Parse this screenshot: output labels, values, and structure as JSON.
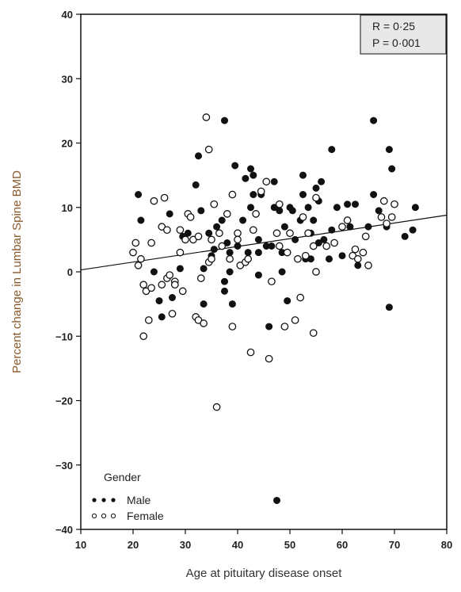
{
  "chart_data": {
    "type": "scatter",
    "xlabel": "Age at pituitary disease onset",
    "ylabel": "Percent change in Lumbar Spine BMD",
    "xlim": [
      10,
      80
    ],
    "ylim": [
      -40,
      40
    ],
    "xticks": [
      10,
      20,
      30,
      40,
      50,
      60,
      70,
      80
    ],
    "yticks": [
      40,
      30,
      20,
      10,
      0,
      -10,
      -20,
      -30,
      -40
    ],
    "xtick_labels": [
      "10",
      "20",
      "30",
      "40",
      "50",
      "60",
      "70",
      "80"
    ],
    "ytick_labels": [
      "40",
      "30",
      "20",
      "10",
      "0",
      "−10",
      "−20",
      "−30",
      "−40"
    ],
    "grid": false,
    "stats": {
      "r": "R = 0·25",
      "p": "P = 0·001"
    },
    "fit_line": {
      "x": [
        10,
        80
      ],
      "y": [
        0.3,
        8.8
      ]
    },
    "legend": {
      "title": "Gender",
      "placement": "bottom-left",
      "entries": [
        "Male",
        "Female"
      ]
    },
    "series": [
      {
        "name": "Male",
        "marker": "filled-circle",
        "color": "#111111",
        "points": [
          [
            21,
            12
          ],
          [
            21.5,
            8
          ],
          [
            24,
            0
          ],
          [
            25,
            -4.5
          ],
          [
            25.5,
            -7
          ],
          [
            27,
            9
          ],
          [
            27.5,
            -4
          ],
          [
            29,
            0.5
          ],
          [
            29.5,
            5.5
          ],
          [
            30.5,
            6
          ],
          [
            31.5,
            5
          ],
          [
            32,
            13.5
          ],
          [
            32.5,
            18
          ],
          [
            33,
            9.5
          ],
          [
            33.5,
            0.5
          ],
          [
            33.5,
            -5
          ],
          [
            34.5,
            6
          ],
          [
            35,
            2.5
          ],
          [
            35.5,
            3.5
          ],
          [
            36,
            7
          ],
          [
            37,
            8
          ],
          [
            37.5,
            23.5
          ],
          [
            37.5,
            -1.5
          ],
          [
            37.5,
            -3
          ],
          [
            38,
            4.5
          ],
          [
            38.5,
            3
          ],
          [
            38.5,
            0
          ],
          [
            39,
            -5
          ],
          [
            39.5,
            16.5
          ],
          [
            40,
            4
          ],
          [
            41,
            8
          ],
          [
            41.5,
            14.5
          ],
          [
            42,
            3
          ],
          [
            42.5,
            16
          ],
          [
            42.5,
            10
          ],
          [
            43,
            15
          ],
          [
            43,
            12
          ],
          [
            44,
            5
          ],
          [
            44,
            3
          ],
          [
            44,
            -0.5
          ],
          [
            44.5,
            12
          ],
          [
            45.5,
            4
          ],
          [
            46,
            -8.5
          ],
          [
            46.5,
            4
          ],
          [
            47,
            14
          ],
          [
            47,
            10
          ],
          [
            47.5,
            -35.5
          ],
          [
            48,
            9.5
          ],
          [
            48.5,
            3
          ],
          [
            48.5,
            0
          ],
          [
            49,
            7
          ],
          [
            49.5,
            -4.5
          ],
          [
            50,
            10
          ],
          [
            50.5,
            9.5
          ],
          [
            51,
            5
          ],
          [
            52,
            8
          ],
          [
            52.5,
            15
          ],
          [
            52.5,
            12
          ],
          [
            53,
            2
          ],
          [
            53.5,
            10
          ],
          [
            54,
            6
          ],
          [
            54,
            2
          ],
          [
            54.5,
            8
          ],
          [
            55,
            13
          ],
          [
            55.5,
            11
          ],
          [
            55.5,
            4.5
          ],
          [
            56,
            14
          ],
          [
            56.5,
            5
          ],
          [
            57.5,
            2
          ],
          [
            58,
            6.5
          ],
          [
            58,
            19
          ],
          [
            59,
            10
          ],
          [
            60,
            2.5
          ],
          [
            61,
            10.5
          ],
          [
            61.5,
            7
          ],
          [
            62.5,
            10.5
          ],
          [
            63,
            1
          ],
          [
            65,
            7
          ],
          [
            66,
            12
          ],
          [
            66,
            23.5
          ],
          [
            67,
            9.5
          ],
          [
            68.5,
            7
          ],
          [
            69,
            19
          ],
          [
            69.5,
            16
          ],
          [
            69,
            -5.5
          ],
          [
            72,
            5.5
          ],
          [
            73.5,
            6.5
          ],
          [
            74,
            10
          ]
        ]
      },
      {
        "name": "Female",
        "marker": "open-circle",
        "color": "#111111",
        "points": [
          [
            20,
            3
          ],
          [
            20.5,
            4.5
          ],
          [
            21,
            1
          ],
          [
            21.5,
            2
          ],
          [
            22,
            -2
          ],
          [
            22,
            -10
          ],
          [
            22.5,
            -3
          ],
          [
            23,
            -7.5
          ],
          [
            23.5,
            -2.5
          ],
          [
            23.5,
            4.5
          ],
          [
            24,
            11
          ],
          [
            25.5,
            7
          ],
          [
            25.5,
            -2
          ],
          [
            26,
            11.5
          ],
          [
            26.5,
            6.5
          ],
          [
            26.5,
            -1
          ],
          [
            27,
            -0.5
          ],
          [
            27.5,
            -6.5
          ],
          [
            28,
            -1.5
          ],
          [
            28,
            -2
          ],
          [
            29,
            6.5
          ],
          [
            29,
            3
          ],
          [
            29.5,
            -3
          ],
          [
            30,
            5
          ],
          [
            30.5,
            9
          ],
          [
            31,
            8.5
          ],
          [
            31.5,
            5
          ],
          [
            32,
            -7
          ],
          [
            32.5,
            -7.5
          ],
          [
            32.5,
            5.5
          ],
          [
            33,
            -1
          ],
          [
            33.5,
            -8
          ],
          [
            34,
            24
          ],
          [
            34.5,
            19
          ],
          [
            34.5,
            1.5
          ],
          [
            35,
            5
          ],
          [
            35,
            2
          ],
          [
            35.5,
            10.5
          ],
          [
            36,
            -21
          ],
          [
            36.5,
            6
          ],
          [
            37,
            4
          ],
          [
            38,
            9
          ],
          [
            38.5,
            2
          ],
          [
            39,
            -8.5
          ],
          [
            39,
            12
          ],
          [
            40,
            6
          ],
          [
            40,
            5
          ],
          [
            40.5,
            1
          ],
          [
            41.5,
            1.5
          ],
          [
            42,
            2
          ],
          [
            42.5,
            -12.5
          ],
          [
            43,
            6.5
          ],
          [
            43.5,
            9
          ],
          [
            44.5,
            12.5
          ],
          [
            45.5,
            14
          ],
          [
            46,
            -13.5
          ],
          [
            46.5,
            -1.5
          ],
          [
            47.5,
            6
          ],
          [
            48,
            4
          ],
          [
            48,
            10.5
          ],
          [
            49,
            -8.5
          ],
          [
            49.5,
            3
          ],
          [
            50,
            6
          ],
          [
            51,
            -7.5
          ],
          [
            51.5,
            2
          ],
          [
            52,
            -4
          ],
          [
            52.5,
            8.5
          ],
          [
            53,
            2.5
          ],
          [
            53.5,
            6
          ],
          [
            54.5,
            -9.5
          ],
          [
            54.5,
            4
          ],
          [
            55,
            0
          ],
          [
            55,
            11.5
          ],
          [
            57,
            4
          ],
          [
            58.5,
            4.5
          ],
          [
            60,
            7
          ],
          [
            61,
            8
          ],
          [
            62,
            2.5
          ],
          [
            62.5,
            3.5
          ],
          [
            63,
            2
          ],
          [
            64,
            3
          ],
          [
            64.5,
            5.5
          ],
          [
            65,
            1
          ],
          [
            67.5,
            8.5
          ],
          [
            68,
            11
          ],
          [
            68.5,
            7.5
          ],
          [
            69.5,
            8.5
          ],
          [
            70,
            10.5
          ]
        ]
      }
    ]
  }
}
